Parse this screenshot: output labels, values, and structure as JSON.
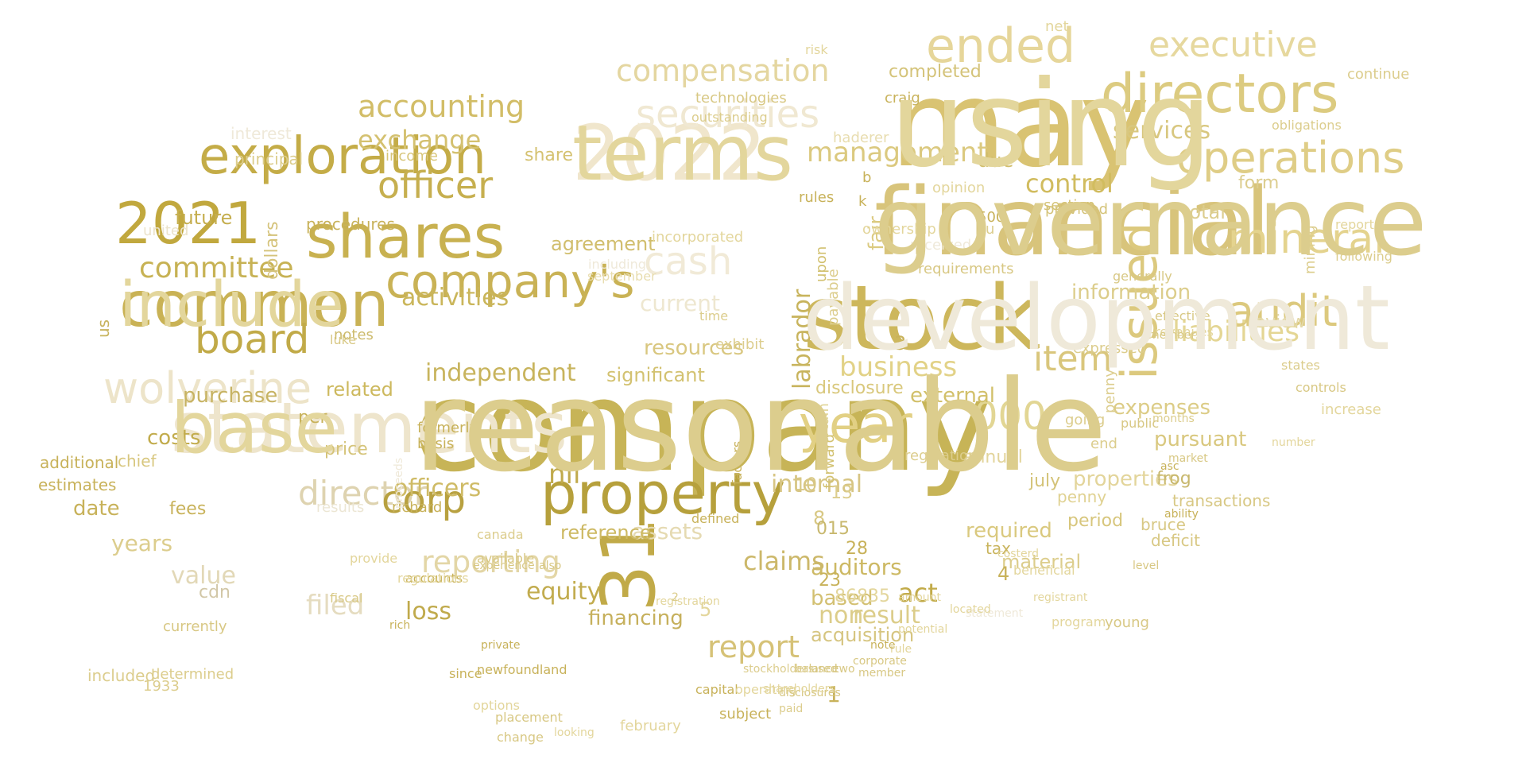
{
  "cloud": {
    "words": [
      {
        "text": "company",
        "color": "#c7b457"
      },
      {
        "text": "may",
        "color": "#d9c372"
      },
      {
        "text": "financial",
        "color": "#d8c47b"
      },
      {
        "text": "stock",
        "color": "#cdb75c"
      },
      {
        "text": "2022",
        "color": "#f0e6cc"
      },
      {
        "text": "statements",
        "color": "#eee5cc"
      },
      {
        "text": "common",
        "color": "#c9b255"
      },
      {
        "text": "shares",
        "color": "#c8b150"
      },
      {
        "text": "2021",
        "color": "#c1a83e"
      },
      {
        "text": "exploration",
        "color": "#c4ac47"
      },
      {
        "text": "directors",
        "color": "#dccb80"
      },
      {
        "text": "property",
        "color": "#b6a03c"
      },
      {
        "text": "ended",
        "color": "#e6d69a"
      },
      {
        "text": "year",
        "color": "#e2d084"
      },
      {
        "text": "securities",
        "color": "#f0e8d2"
      },
      {
        "text": "operations",
        "color": "#dfcd86"
      },
      {
        "text": "company's",
        "color": "#c9b255"
      },
      {
        "text": "wolverine",
        "color": "#ede4c9"
      },
      {
        "text": "board",
        "color": "#c1aa48"
      },
      {
        "text": "mineral",
        "color": "#e4d38e"
      },
      {
        "text": "audit",
        "color": "#dcc97e"
      },
      {
        "text": "executive",
        "color": "#e6d89e"
      },
      {
        "text": "issued",
        "color": "#dcc97e"
      },
      {
        "text": "officer",
        "color": "#c6af4f"
      },
      {
        "text": "cash",
        "color": "#f1ead7"
      },
      {
        "text": "31",
        "color": "#c1aa48"
      },
      {
        "text": "reporting",
        "color": "#e3d6a6"
      },
      {
        "text": "director",
        "color": "#ded3b0"
      },
      {
        "text": "management",
        "color": "#dbc97f"
      },
      {
        "text": "business",
        "color": "#e2d287"
      },
      {
        "text": "committee",
        "color": "#c7b254"
      },
      {
        "text": "accounting",
        "color": "#d2bd67"
      },
      {
        "text": "compensation",
        "color": "#e4d6a0"
      },
      {
        "text": "liabilities",
        "color": "#e4d694"
      },
      {
        "text": "item",
        "color": "#d9c67c"
      },
      {
        "text": "000",
        "color": "#e2d694"
      },
      {
        "text": "corp",
        "color": "#b8a140"
      },
      {
        "text": "act",
        "color": "#c2ab4a"
      },
      {
        "text": "report",
        "color": "#d6c277"
      },
      {
        "text": "filed",
        "color": "#e5dcc0"
      },
      {
        "text": "activities",
        "color": "#cab65b"
      },
      {
        "text": "independent",
        "color": "#c8b45d"
      },
      {
        "text": "control",
        "color": "#d1bc5f"
      },
      {
        "text": "exchange",
        "color": "#d4c170"
      },
      {
        "text": "financing",
        "color": "#c6b05c"
      },
      {
        "text": "services",
        "color": "#d8c77f"
      },
      {
        "text": "internal",
        "color": "#d7c583"
      },
      {
        "text": "properties",
        "color": "#e3d59b"
      },
      {
        "text": "auditors",
        "color": "#cdb964"
      },
      {
        "text": "claims",
        "color": "#ccb86a"
      },
      {
        "text": "assets",
        "color": "#e5dab2"
      },
      {
        "text": "costs",
        "color": "#c2ac4d"
      },
      {
        "text": "value",
        "color": "#e2d8b7"
      },
      {
        "text": "officers",
        "color": "#cfbb66"
      },
      {
        "text": "loss",
        "color": "#c0aa4c"
      },
      {
        "text": "required",
        "color": "#dac97f"
      },
      {
        "text": "future",
        "color": "#c5ae4f"
      },
      {
        "text": "external",
        "color": "#d2c06a"
      },
      {
        "text": "information",
        "color": "#dccd8b"
      },
      {
        "text": "resources",
        "color": "#d9c780"
      },
      {
        "text": "agreement",
        "color": "#d1be6d"
      },
      {
        "text": "current",
        "color": "#eee7d0"
      },
      {
        "text": "related",
        "color": "#cdb95e"
      },
      {
        "text": "purchase",
        "color": "#c7b363"
      },
      {
        "text": "nil",
        "color": "#c0aa4c"
      },
      {
        "text": "equity",
        "color": "#c2ac4f"
      },
      {
        "text": "based",
        "color": "#d3c072"
      },
      {
        "text": "result",
        "color": "#dccd8a"
      },
      {
        "text": "non",
        "color": "#dccd8a"
      },
      {
        "text": "acquisition",
        "color": "#d6c580"
      },
      {
        "text": "pursuant",
        "color": "#d9c87f"
      },
      {
        "text": "expenses",
        "color": "#dccc86"
      },
      {
        "text": "labrador",
        "color": "#c8b45d"
      },
      {
        "text": "fair",
        "color": "#dbca80"
      },
      {
        "text": "due",
        "color": "#d1be6c"
      },
      {
        "text": "total",
        "color": "#dccd8e"
      },
      {
        "text": "form",
        "color": "#dccd8e"
      },
      {
        "text": "review",
        "color": "#e3d8a7"
      },
      {
        "text": "annual",
        "color": "#e2d49b"
      },
      {
        "text": "disclosure",
        "color": "#d9c87c"
      },
      {
        "text": "significant",
        "color": "#d3c271"
      },
      {
        "text": "reference",
        "color": "#cdb963"
      },
      {
        "text": "period",
        "color": "#d7c67c"
      },
      {
        "text": "frog",
        "color": "#c8b86e"
      },
      {
        "text": "july",
        "color": "#d4c378"
      },
      {
        "text": "penny",
        "color": "#e0d292"
      },
      {
        "text": "tax",
        "color": "#c9b45d"
      },
      {
        "text": "material",
        "color": "#dccd8c"
      },
      {
        "text": "fees",
        "color": "#c8b25a"
      },
      {
        "text": "price",
        "color": "#d5c47a"
      },
      {
        "text": "per",
        "color": "#c8b25a"
      },
      {
        "text": "notes",
        "color": "#cdbb6d"
      },
      {
        "text": "share",
        "color": "#d5c271"
      },
      {
        "text": "income",
        "color": "#d7c579"
      },
      {
        "text": "interest",
        "color": "#efe9d9"
      },
      {
        "text": "principal",
        "color": "#dccd8d"
      },
      {
        "text": "united",
        "color": "#ebe3cb"
      },
      {
        "text": "procedures",
        "color": "#c8b25a"
      },
      {
        "text": "dollars",
        "color": "#d5c37b"
      },
      {
        "text": "chief",
        "color": "#d8c77f"
      },
      {
        "text": "us",
        "color": "#c8b45e"
      },
      {
        "text": "additional",
        "color": "#c8b25a"
      },
      {
        "text": "estimates",
        "color": "#c8b25a"
      },
      {
        "text": "date",
        "color": "#c8b25a"
      },
      {
        "text": "years",
        "color": "#dccd8d"
      },
      {
        "text": "cdn",
        "color": "#d2c7a7"
      },
      {
        "text": "results",
        "color": "#ece6d4"
      },
      {
        "text": "richard",
        "color": "#c8b25a"
      },
      {
        "text": "formerly",
        "color": "#c8b25a"
      },
      {
        "text": "basis",
        "color": "#c8b25a"
      },
      {
        "text": "rules",
        "color": "#c8b25a"
      },
      {
        "text": "upon",
        "color": "#d2c170"
      },
      {
        "text": "payable",
        "color": "#dccd8d"
      },
      {
        "text": "certain",
        "color": "#e0d496"
      },
      {
        "text": "forward",
        "color": "#d2c170"
      },
      {
        "text": "regulation",
        "color": "#dccd8d"
      },
      {
        "text": "section",
        "color": "#d4c274"
      },
      {
        "text": "opinion",
        "color": "#e3d69c"
      },
      {
        "text": "provided",
        "color": "#d4c379"
      },
      {
        "text": "completed",
        "color": "#d4c379"
      },
      {
        "text": "craig",
        "color": "#c8b25a"
      },
      {
        "text": "net",
        "color": "#e3d69c"
      },
      {
        "text": "risk",
        "color": "#e3d69c"
      },
      {
        "text": "haderer",
        "color": "#e8ddb0"
      },
      {
        "text": "technologies",
        "color": "#d8c884"
      },
      {
        "text": "outstanding",
        "color": "#dccd8d"
      },
      {
        "text": "incorporated",
        "color": "#e3d69c"
      },
      {
        "text": "exhibit",
        "color": "#dccd8d"
      },
      {
        "text": "time",
        "color": "#dccd8d"
      },
      {
        "text": "including",
        "color": "#efe9d9"
      },
      {
        "text": "september",
        "color": "#e8ddb0"
      },
      {
        "text": "effective",
        "color": "#d8c884"
      },
      {
        "text": "revenues",
        "color": "#e3d69c"
      },
      {
        "text": "reports",
        "color": "#e3d69c"
      },
      {
        "text": "continue",
        "color": "#dccd8d"
      },
      {
        "text": "obligations",
        "color": "#dccd8d"
      },
      {
        "text": "mining",
        "color": "#dccd8d"
      },
      {
        "text": "following",
        "color": "#dccd8d"
      },
      {
        "text": "states",
        "color": "#dccd8d"
      },
      {
        "text": "controls",
        "color": "#d8c884"
      },
      {
        "text": "increase",
        "color": "#e3d69c"
      },
      {
        "text": "number",
        "color": "#e3d69c"
      },
      {
        "text": "months",
        "color": "#dccd8d"
      },
      {
        "text": "asc",
        "color": "#c8b25a"
      },
      {
        "text": "members",
        "color": "#d8c884"
      },
      {
        "text": "end",
        "color": "#dccd8d"
      },
      {
        "text": "going",
        "color": "#dccd8d"
      },
      {
        "text": "expressed",
        "color": "#dccd8d"
      },
      {
        "text": "penny",
        "color": "#dccd8d"
      },
      {
        "text": "public",
        "color": "#d8c884"
      },
      {
        "text": "market",
        "color": "#d8c884"
      },
      {
        "text": "defined",
        "color": "#c8b25a"
      },
      {
        "text": "factors",
        "color": "#c8b25a"
      },
      {
        "text": "capital",
        "color": "#c8b25a"
      },
      {
        "text": "operating",
        "color": "#e3d69c"
      },
      {
        "text": "subject",
        "color": "#c8b25a"
      },
      {
        "text": "february",
        "color": "#e3d69c"
      },
      {
        "text": "looking",
        "color": "#e3d69c"
      },
      {
        "text": "placement",
        "color": "#d8c884"
      },
      {
        "text": "change",
        "color": "#d8c884"
      },
      {
        "text": "options",
        "color": "#e3d69c"
      },
      {
        "text": "newfoundland",
        "color": "#c8b25a"
      },
      {
        "text": "since",
        "color": "#c8b25a"
      },
      {
        "text": "private",
        "color": "#c8b25a"
      },
      {
        "text": "rich",
        "color": "#c8b25a"
      },
      {
        "text": "accounts",
        "color": "#c8b25a"
      },
      {
        "text": "experience",
        "color": "#d8c884"
      },
      {
        "text": "also",
        "color": "#d8c884"
      },
      {
        "text": "proceeds",
        "color": "#efe9d9"
      },
      {
        "text": "luke",
        "color": "#d8c884"
      },
      {
        "text": "currently",
        "color": "#d8c884"
      },
      {
        "text": "fiscal",
        "color": "#d8c884"
      },
      {
        "text": "available",
        "color": "#d8c884"
      },
      {
        "text": "canada",
        "color": "#dccd8d"
      },
      {
        "text": "included",
        "color": "#dccd8d"
      },
      {
        "text": "determined",
        "color": "#dccd8d"
      },
      {
        "text": "1933",
        "color": "#dccd8d"
      },
      {
        "text": "provide",
        "color": "#e3d69c"
      },
      {
        "text": "regulations",
        "color": "#e3d69c"
      },
      {
        "text": "registration",
        "color": "#e3d69c"
      },
      {
        "text": "2",
        "color": "#dccd8d"
      },
      {
        "text": "1",
        "color": "#c8b25a"
      },
      {
        "text": "3",
        "color": "#c8b25a"
      },
      {
        "text": "4",
        "color": "#c8b25a"
      },
      {
        "text": "5",
        "color": "#e3d69c"
      },
      {
        "text": "8",
        "color": "#d8c884"
      },
      {
        "text": "10",
        "color": "#d8c884"
      },
      {
        "text": "13",
        "color": "#dccd8d"
      },
      {
        "text": "015",
        "color": "#c8b86e"
      },
      {
        "text": "28",
        "color": "#c8b25a"
      },
      {
        "text": "23",
        "color": "#c8b25a"
      },
      {
        "text": "86835",
        "color": "#e3d69c"
      },
      {
        "text": "500",
        "color": "#c8b25a"
      },
      {
        "text": "u",
        "color": "#dccd8d"
      },
      {
        "text": "b",
        "color": "#c8b25a"
      },
      {
        "text": "k",
        "color": "#c8b25a"
      },
      {
        "text": "f",
        "color": "#c8b25a"
      },
      {
        "text": "ownership",
        "color": "#e3d69c"
      },
      {
        "text": "received",
        "color": "#efe9d9"
      },
      {
        "text": "requirements",
        "color": "#d8c884"
      },
      {
        "text": "generally",
        "color": "#d8c884"
      },
      {
        "text": "transactions",
        "color": "#d8c884"
      },
      {
        "text": "deficit",
        "color": "#d8c884"
      },
      {
        "text": "bruce",
        "color": "#d8c884"
      },
      {
        "text": "level",
        "color": "#d8c884"
      },
      {
        "text": "ability",
        "color": "#c8b25a"
      },
      {
        "text": "young",
        "color": "#d8c884"
      },
      {
        "text": "program",
        "color": "#e3d69c"
      },
      {
        "text": "registrant",
        "color": "#e3d69c"
      },
      {
        "text": "beneficial",
        "color": "#e3d69c"
      },
      {
        "text": "costerd",
        "color": "#e3d69c"
      },
      {
        "text": "statement",
        "color": "#efe9d9"
      },
      {
        "text": "located",
        "color": "#e3d69c"
      },
      {
        "text": "amount",
        "color": "#e3d69c"
      },
      {
        "text": "potential",
        "color": "#e3d69c"
      },
      {
        "text": "rule",
        "color": "#e3d69c"
      },
      {
        "text": "note",
        "color": "#c8b25a"
      },
      {
        "text": "corporate",
        "color": "#d8c884"
      },
      {
        "text": "member",
        "color": "#d8c884"
      },
      {
        "text": "two",
        "color": "#d8c884"
      },
      {
        "text": "used",
        "color": "#d8c884"
      },
      {
        "text": "balance",
        "color": "#d8c884"
      },
      {
        "text": "disclosures",
        "color": "#d8c884"
      },
      {
        "text": "paid",
        "color": "#dccd8d"
      },
      {
        "text": "shareholders",
        "color": "#e3d69c"
      },
      {
        "text": "stockholders",
        "color": "#dccd8d"
      },
      {
        "text": "reasonable",
        "color": "#dccd8d"
      },
      {
        "text": "using",
        "color": "#e3d69c"
      },
      {
        "text": "governance",
        "color": "#dccd8d"
      },
      {
        "text": "development",
        "color": "#efe9d9"
      },
      {
        "text": "terms",
        "color": "#e3d69c"
      },
      {
        "text": "base",
        "color": "#e3d69c"
      },
      {
        "text": "include",
        "color": "#e3d69c"
      }
    ]
  }
}
